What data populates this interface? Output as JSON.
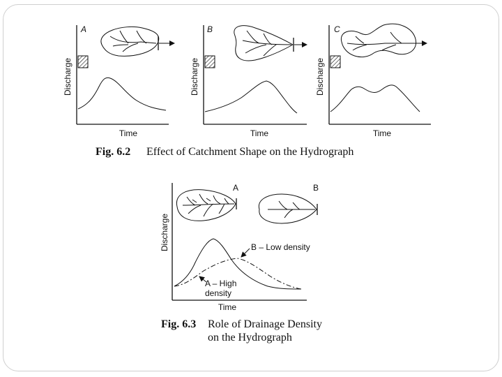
{
  "fig62": {
    "caption_num": "Fig. 6.2",
    "caption_text": "Effect of Catchment Shape on the Hydrograph",
    "panels": [
      {
        "letter": "A",
        "ylabel": "Discharge",
        "xlabel": "Time"
      },
      {
        "letter": "B",
        "ylabel": "Discharge",
        "xlabel": "Time"
      },
      {
        "letter": "C",
        "ylabel": "Discharge",
        "xlabel": "Time"
      }
    ]
  },
  "fig63": {
    "caption_num": "Fig. 6.3",
    "caption_line1": "Role of Drainage Density",
    "caption_line2": "on the Hydrograph",
    "ylabel": "Discharge",
    "xlabel": "Time",
    "letter_a": "A",
    "letter_b": "B",
    "label_b": "B – Low density",
    "label_a_line1": "A – High",
    "label_a_line2": "density"
  }
}
